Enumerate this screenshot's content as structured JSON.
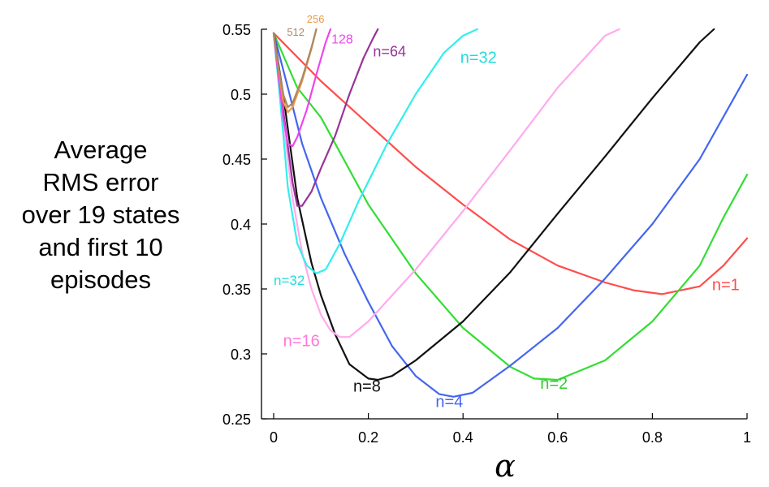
{
  "chart_data": {
    "type": "line",
    "title": "",
    "xlabel": "α",
    "ylabel_lines": [
      "Average",
      "RMS error",
      "over 19 states",
      "and first 10",
      "episodes"
    ],
    "xlim": [
      0,
      1
    ],
    "ylim": [
      0.25,
      0.55
    ],
    "x_ticks": [
      "0",
      "0.2",
      "0.4",
      "0.6",
      "0.8",
      "1"
    ],
    "y_ticks": [
      "0.25",
      "0.3",
      "0.35",
      "0.4",
      "0.45",
      "0.5",
      "0.55"
    ],
    "grid": false,
    "series": [
      {
        "name": "n=1",
        "color": "#ff4d4d",
        "x": [
          0,
          0.1,
          0.2,
          0.3,
          0.4,
          0.5,
          0.6,
          0.7,
          0.76,
          0.82,
          0.9,
          0.95,
          1.0
        ],
        "y": [
          0.547,
          0.51,
          0.477,
          0.444,
          0.415,
          0.388,
          0.368,
          0.355,
          0.349,
          0.346,
          0.352,
          0.368,
          0.389
        ]
      },
      {
        "name": "n=2",
        "color": "#33dd33",
        "x": [
          0,
          0.05,
          0.1,
          0.2,
          0.3,
          0.4,
          0.5,
          0.55,
          0.6,
          0.7,
          0.8,
          0.9,
          0.95,
          1.0
        ],
        "y": [
          0.547,
          0.505,
          0.482,
          0.415,
          0.362,
          0.32,
          0.29,
          0.281,
          0.28,
          0.295,
          0.325,
          0.368,
          0.405,
          0.438
        ]
      },
      {
        "name": "n=4",
        "color": "#4466ee",
        "x": [
          0,
          0.03,
          0.06,
          0.1,
          0.15,
          0.2,
          0.25,
          0.3,
          0.35,
          0.38,
          0.42,
          0.5,
          0.6,
          0.7,
          0.8,
          0.9,
          1.0
        ],
        "y": [
          0.547,
          0.505,
          0.462,
          0.42,
          0.377,
          0.34,
          0.306,
          0.283,
          0.269,
          0.267,
          0.27,
          0.291,
          0.32,
          0.358,
          0.4,
          0.45,
          0.515
        ]
      },
      {
        "name": "n=8",
        "color": "#111111",
        "x": [
          0,
          0.02,
          0.05,
          0.08,
          0.1,
          0.13,
          0.16,
          0.2,
          0.22,
          0.25,
          0.3,
          0.4,
          0.5,
          0.6,
          0.7,
          0.8,
          0.9,
          0.93
        ],
        "y": [
          0.547,
          0.5,
          0.42,
          0.37,
          0.345,
          0.315,
          0.292,
          0.281,
          0.28,
          0.283,
          0.295,
          0.325,
          0.363,
          0.408,
          0.452,
          0.497,
          0.54,
          0.55
        ]
      },
      {
        "name": "n=16",
        "color": "#ffaaee",
        "x": [
          0,
          0.02,
          0.04,
          0.06,
          0.08,
          0.1,
          0.12,
          0.14,
          0.16,
          0.2,
          0.3,
          0.4,
          0.5,
          0.6,
          0.7,
          0.73
        ],
        "y": [
          0.547,
          0.48,
          0.42,
          0.378,
          0.35,
          0.33,
          0.318,
          0.313,
          0.313,
          0.325,
          0.365,
          0.41,
          0.457,
          0.505,
          0.545,
          0.55
        ]
      },
      {
        "name": "n=32",
        "color": "#33eeee",
        "x": [
          0,
          0.01,
          0.02,
          0.03,
          0.05,
          0.07,
          0.09,
          0.11,
          0.14,
          0.18,
          0.24,
          0.3,
          0.36,
          0.4,
          0.43
        ],
        "y": [
          0.547,
          0.51,
          0.47,
          0.428,
          0.385,
          0.368,
          0.362,
          0.365,
          0.385,
          0.418,
          0.462,
          0.5,
          0.532,
          0.545,
          0.55
        ]
      },
      {
        "name": "n=64",
        "color": "#993399",
        "x": [
          0,
          0.01,
          0.02,
          0.03,
          0.04,
          0.05,
          0.06,
          0.08,
          0.1,
          0.13,
          0.16,
          0.19,
          0.21,
          0.22
        ],
        "y": [
          0.547,
          0.515,
          0.488,
          0.46,
          0.432,
          0.414,
          0.414,
          0.425,
          0.443,
          0.468,
          0.5,
          0.528,
          0.543,
          0.55
        ]
      },
      {
        "name": "128",
        "color": "#ee44ee",
        "x": [
          0,
          0.01,
          0.02,
          0.03,
          0.04,
          0.05,
          0.07,
          0.09,
          0.11,
          0.12
        ],
        "y": [
          0.547,
          0.515,
          0.482,
          0.462,
          0.46,
          0.467,
          0.488,
          0.515,
          0.54,
          0.55
        ]
      },
      {
        "name": "256",
        "color": "#ee9944",
        "x": [
          0,
          0.01,
          0.02,
          0.03,
          0.04,
          0.06,
          0.08,
          0.09
        ],
        "y": [
          0.547,
          0.52,
          0.495,
          0.486,
          0.49,
          0.51,
          0.535,
          0.55
        ]
      },
      {
        "name": "512",
        "color": "#aa8866",
        "x": [
          0,
          0.01,
          0.02,
          0.03,
          0.04,
          0.06,
          0.08,
          0.09
        ],
        "y": [
          0.547,
          0.522,
          0.5,
          0.49,
          0.493,
          0.512,
          0.536,
          0.55
        ]
      }
    ],
    "annotations": [
      {
        "text": "n=1",
        "color": "#ff4d4d",
        "x": 0.926,
        "y": 0.349,
        "size": 20
      },
      {
        "text": "n=2",
        "color": "#33cc33",
        "x": 0.563,
        "y": 0.273,
        "size": 20
      },
      {
        "text": "n=4",
        "color": "#4466ee",
        "x": 0.342,
        "y": 0.259,
        "size": 20
      },
      {
        "text": "n=8",
        "color": "#111111",
        "x": 0.168,
        "y": 0.271,
        "size": 20
      },
      {
        "text": "n=16",
        "color": "#ff77dd",
        "x": 0.02,
        "y": 0.306,
        "size": 20
      },
      {
        "text": "n=32",
        "color": "#22dddd",
        "x": 0.0,
        "y": 0.353,
        "size": 17
      },
      {
        "text": "n=32",
        "color": "#22dddd",
        "x": 0.394,
        "y": 0.524,
        "size": 20
      },
      {
        "text": "n=64",
        "color": "#993399",
        "x": 0.21,
        "y": 0.529,
        "size": 18
      },
      {
        "text": "128",
        "color": "#ee44ee",
        "x": 0.122,
        "y": 0.539,
        "size": 16
      },
      {
        "text": "256",
        "color": "#ee9944",
        "x": 0.07,
        "y": 0.555,
        "size": 13
      },
      {
        "text": "512",
        "color": "#aa8866",
        "x": 0.028,
        "y": 0.545,
        "size": 13
      }
    ]
  }
}
